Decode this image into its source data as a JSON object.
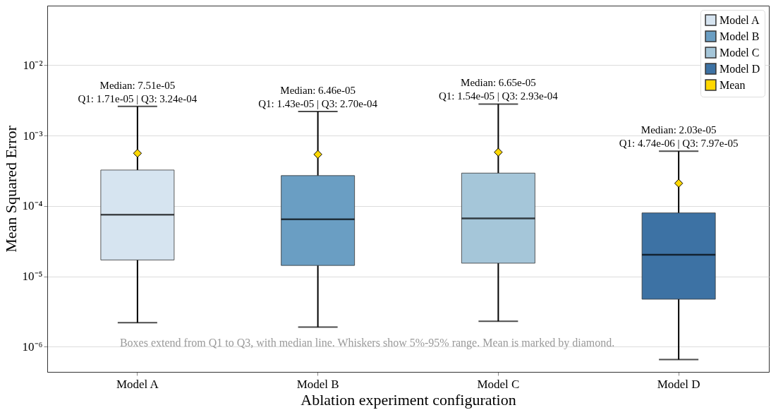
{
  "chart_data": {
    "type": "box",
    "xlabel": "Ablation experiment configuration",
    "ylabel": "Mean Squared Error",
    "categories": [
      "Model A",
      "Model B",
      "Model C",
      "Model D"
    ],
    "colors": [
      "#d6e4f0",
      "#6a9ec3",
      "#a5c6d9",
      "#3d72a4"
    ],
    "boxes": [
      {
        "low": 2.2e-06,
        "q1": 1.71e-05,
        "median": 7.51e-05,
        "q3": 0.000324,
        "high": 0.0026
      },
      {
        "low": 1.9e-06,
        "q1": 1.43e-05,
        "median": 6.46e-05,
        "q3": 0.00027,
        "high": 0.0022
      },
      {
        "low": 2.3e-06,
        "q1": 1.54e-05,
        "median": 6.65e-05,
        "q3": 0.000293,
        "high": 0.0028
      },
      {
        "low": 6.6e-07,
        "q1": 4.74e-06,
        "median": 2.03e-05,
        "q3": 7.97e-05,
        "high": 0.0006
      }
    ],
    "series": [
      {
        "name": "Mean",
        "type": "scatter",
        "marker": "diamond",
        "color": "#ffd700",
        "x": [
          "Model A",
          "Model B",
          "Model C",
          "Model D"
        ],
        "values": [
          0.00056,
          0.00054,
          0.00058,
          0.00021
        ]
      }
    ],
    "ylim": [
      4.4e-07,
      0.07
    ],
    "yticks": [
      {
        "value": 1e-06,
        "label": "10⁻⁶"
      },
      {
        "value": 1e-05,
        "label": "10⁻⁵"
      },
      {
        "value": 0.0001,
        "label": "10⁻⁴"
      },
      {
        "value": 0.001,
        "label": "10⁻³"
      },
      {
        "value": 0.01,
        "label": "10⁻²"
      }
    ],
    "log": true,
    "grid": "y",
    "legend": "top right",
    "annotations": [
      "Median: 7.51e-05\nQ1: 1.71e-05 | Q3: 3.24e-04",
      "Median: 6.46e-05\nQ1: 1.43e-05 | Q3: 2.70e-04",
      "Median: 6.65e-05\nQ1: 1.54e-05 | Q3: 2.93e-04",
      "Median: 2.03e-05\nQ1: 4.74e-06 | Q3: 7.97e-05",
      "Boxes extend from Q1 to Q3, with median line. Whiskers show 5%-95% range. Mean is marked by diamond."
    ]
  }
}
